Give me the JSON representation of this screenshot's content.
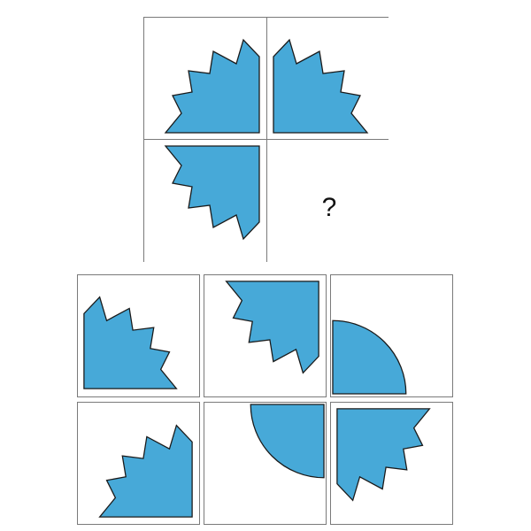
{
  "puzzle": {
    "missing_cell_label": "?",
    "fill_color": "#47a9d8",
    "cells": [
      {
        "shape": "sawtooth-quarter-icon",
        "orientation": "corner-bottom-right"
      },
      {
        "shape": "sawtooth-quarter-icon",
        "orientation": "corner-bottom-left"
      },
      {
        "shape": "sawtooth-quarter-icon",
        "orientation": "corner-top-right"
      },
      {
        "shape": "missing"
      }
    ]
  },
  "options": [
    {
      "shape": "sawtooth-quarter-icon",
      "orientation": "corner-bottom-left"
    },
    {
      "shape": "sawtooth-quarter-icon",
      "orientation": "corner-top-right"
    },
    {
      "shape": "quarter-disc-icon",
      "orientation": "corner-bottom-left"
    },
    {
      "shape": "sawtooth-quarter-icon",
      "orientation": "corner-bottom-right"
    },
    {
      "shape": "quarter-disc-icon",
      "orientation": "corner-top-right"
    },
    {
      "shape": "sawtooth-quarter-icon",
      "orientation": "corner-top-left"
    }
  ]
}
